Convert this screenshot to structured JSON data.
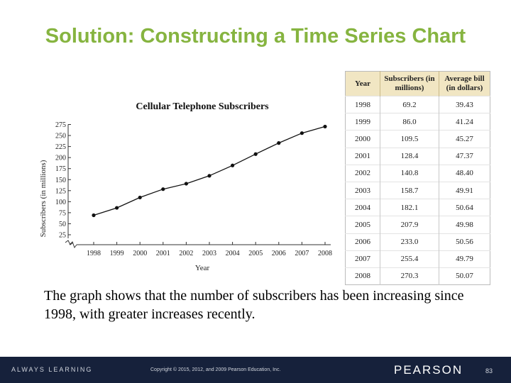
{
  "slide": {
    "title": "Solution: Constructing a Time Series Chart",
    "caption": "The graph shows that the number of subscribers has been increasing since 1998, with greater increases recently."
  },
  "chart_data": {
    "type": "line",
    "title": "Cellular Telephone Subscribers",
    "xlabel": "Year",
    "ylabel": "Subscribers (in millions)",
    "x": [
      1998,
      1999,
      2000,
      2001,
      2002,
      2003,
      2004,
      2005,
      2006,
      2007,
      2008
    ],
    "x_tick_labels": [
      "1998",
      "1999",
      "2000",
      "2001",
      "2002",
      "2003",
      "2004",
      "2005",
      "2006",
      "2007",
      "2008"
    ],
    "y_ticks": [
      25,
      50,
      75,
      100,
      125,
      150,
      175,
      200,
      225,
      250,
      275
    ],
    "y_tick_labels": [
      "25",
      "50",
      "75",
      "100",
      "125",
      "150",
      "175",
      "200",
      "225",
      "250",
      "275"
    ],
    "ylim": [
      0,
      275
    ],
    "y_axis_break": true,
    "grid": false,
    "series": [
      {
        "values": [
          69.2,
          86.0,
          109.5,
          128.4,
          140.8,
          158.7,
          182.1,
          207.9,
          233.0,
          255.4,
          270.3
        ]
      }
    ]
  },
  "table": {
    "headers": [
      "Year",
      "Subscribers (in millions)",
      "Average bill (in dollars)"
    ],
    "rows": [
      [
        "1998",
        "69.2",
        "39.43"
      ],
      [
        "1999",
        "86.0",
        "41.24"
      ],
      [
        "2000",
        "109.5",
        "45.27"
      ],
      [
        "2001",
        "128.4",
        "47.37"
      ],
      [
        "2002",
        "140.8",
        "48.40"
      ],
      [
        "2003",
        "158.7",
        "49.91"
      ],
      [
        "2004",
        "182.1",
        "50.64"
      ],
      [
        "2005",
        "207.9",
        "49.98"
      ],
      [
        "2006",
        "233.0",
        "50.56"
      ],
      [
        "2007",
        "255.4",
        "49.79"
      ],
      [
        "2008",
        "270.3",
        "50.07"
      ]
    ]
  },
  "footer": {
    "tagline": "ALWAYS LEARNING",
    "copyright": "Copyright © 2015, 2012, and 2009 Pearson Education, Inc.",
    "brand": "PEARSON",
    "page": "83"
  },
  "colors": {
    "title": "#86b440",
    "table_header": "#f1e6c3",
    "footer_bar": "#16213b",
    "line": "#111111"
  }
}
